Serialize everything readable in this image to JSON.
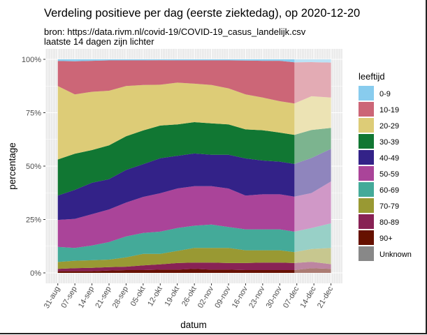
{
  "chart_data": {
    "type": "bar",
    "stacked": true,
    "title": "Verdeling positieve per dag (eerste ziektedag), op 2020-12-20",
    "subtitle_lines": [
      "bron: https://data.rivm.nl/covid-19/COVID-19_casus_landelijk.csv",
      "laatste 14 dagen zijn lichter"
    ],
    "xlabel": "datum",
    "ylabel": "percentage",
    "ylim": [
      0,
      100
    ],
    "yticks": [
      0,
      25,
      50,
      75,
      100
    ],
    "ytick_labels": [
      "0%",
      "25%",
      "50%",
      "75%",
      "100%"
    ],
    "xlim": [
      "2020-08-31",
      "2020-12-21"
    ],
    "xticks": [
      "2020-08-31",
      "2020-09-07",
      "2020-09-14",
      "2020-09-21",
      "2020-09-28",
      "2020-10-05",
      "2020-10-12",
      "2020-10-19",
      "2020-10-26",
      "2020-11-02",
      "2020-11-09",
      "2020-11-16",
      "2020-11-23",
      "2020-11-30",
      "2020-12-07",
      "2020-12-14",
      "2020-12-21"
    ],
    "xtick_labels": [
      "31-aug",
      "07-sep",
      "14-sep",
      "21-sep",
      "28-sep",
      "05-okt",
      "12-okt",
      "19-okt",
      "26-okt",
      "02-nov",
      "09-nov",
      "16-nov",
      "23-nov",
      "30-nov",
      "07-dec",
      "14-dec",
      "21-dec"
    ],
    "lighter_from": "2020-12-07",
    "grid": true,
    "legend_title": "leeftijd",
    "legend_position": "right",
    "x": [
      "2020-08-31",
      "2020-09-07",
      "2020-09-14",
      "2020-09-21",
      "2020-09-28",
      "2020-10-05",
      "2020-10-12",
      "2020-10-19",
      "2020-10-26",
      "2020-11-02",
      "2020-11-09",
      "2020-11-16",
      "2020-11-23",
      "2020-11-30",
      "2020-12-06",
      "2020-12-13",
      "2020-12-20"
    ],
    "series": [
      {
        "name": "0-9",
        "color": "#88ccee",
        "values": [
          0.8,
          0.8,
          0.8,
          0.5,
          0.5,
          0.5,
          0.5,
          0.5,
          0.5,
          0.5,
          0.5,
          0.5,
          0.8,
          0.8,
          1.4,
          1.4,
          1.6
        ]
      },
      {
        "name": "10-19",
        "color": "#cc6677",
        "values": [
          11.7,
          15.5,
          14.5,
          14.2,
          12.0,
          11.5,
          11.5,
          10.4,
          10.9,
          11.5,
          13.1,
          15.8,
          17.2,
          18.9,
          19.3,
          16.0,
          16.4
        ]
      },
      {
        "name": "20-29",
        "color": "#ddcc77",
        "values": [
          34.4,
          27.8,
          27.3,
          25.6,
          23.5,
          21.3,
          19.1,
          19.6,
          18.0,
          18.0,
          16.9,
          16.4,
          15.3,
          14.7,
          14.7,
          15.8,
          14.2
        ]
      },
      {
        "name": "30-39",
        "color": "#117733",
        "values": [
          16.9,
          16.9,
          15.3,
          15.8,
          15.8,
          15.8,
          15.3,
          14.7,
          14.7,
          14.7,
          14.2,
          13.6,
          14.2,
          13.6,
          13.6,
          13.1,
          9.8
        ]
      },
      {
        "name": "40-49",
        "color": "#332288",
        "values": [
          11.4,
          13.6,
          14.7,
          14.2,
          15.3,
          15.3,
          16.4,
          15.3,
          15.3,
          14.7,
          15.8,
          17.4,
          15.8,
          15.3,
          15.3,
          16.4,
          15.3
        ]
      },
      {
        "name": "50-59",
        "color": "#aa4499",
        "values": [
          12.6,
          13.6,
          14.7,
          15.3,
          15.8,
          16.9,
          18.0,
          18.5,
          18.5,
          18.0,
          18.0,
          15.8,
          16.4,
          16.4,
          16.4,
          16.4,
          19.6
        ]
      },
      {
        "name": "60-69",
        "color": "#44aa99",
        "values": [
          7.1,
          6.0,
          6.9,
          8.2,
          9.8,
          9.8,
          10.4,
          10.7,
          10.4,
          10.9,
          9.8,
          9.8,
          9.8,
          9.8,
          9.6,
          9.8,
          11.5
        ]
      },
      {
        "name": "70-79",
        "color": "#999933",
        "values": [
          3.2,
          3.5,
          3.5,
          3.5,
          4.4,
          5.4,
          4.9,
          5.7,
          6.9,
          6.9,
          7.1,
          6.0,
          5.8,
          5.8,
          5.1,
          6.0,
          7.6
        ]
      },
      {
        "name": "80-89",
        "color": "#882255",
        "values": [
          1.1,
          1.4,
          1.6,
          1.6,
          1.6,
          2.2,
          2.5,
          3.1,
          2.9,
          3.3,
          3.1,
          3.3,
          3.5,
          3.5,
          3.3,
          3.0,
          2.2
        ]
      },
      {
        "name": "90+",
        "color": "#661100",
        "values": [
          0.8,
          0.8,
          0.8,
          1.1,
          1.3,
          1.3,
          1.5,
          1.5,
          1.9,
          1.5,
          1.5,
          1.3,
          1.3,
          1.3,
          1.3,
          2.2,
          1.9
        ]
      },
      {
        "name": "Unknown",
        "color": "#888888",
        "values": [
          0,
          0,
          0,
          0,
          0,
          0,
          0,
          0,
          0,
          0,
          0,
          0,
          0,
          0,
          0,
          0,
          0
        ]
      }
    ]
  }
}
